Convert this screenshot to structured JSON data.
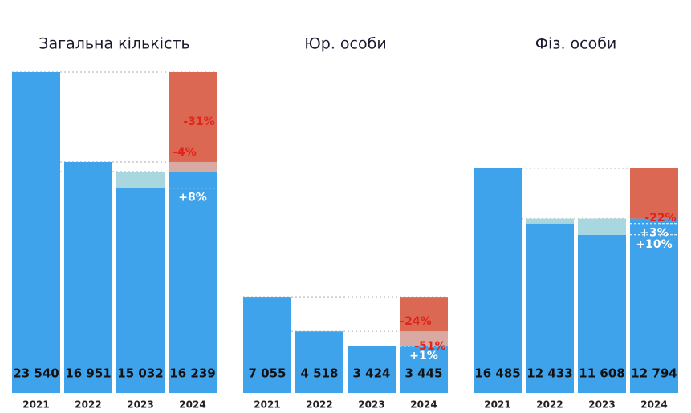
{
  "chart_data": [
    {
      "type": "bar",
      "title": "Загальна кількість",
      "categories": [
        "2021",
        "2022",
        "2023",
        "2024"
      ],
      "values": [
        23540,
        16951,
        15032,
        16239
      ],
      "value_labels": [
        "23 540",
        "16 951",
        "15 032",
        "16 239"
      ],
      "color": "#3ea3ea",
      "ylim": [
        0,
        23540
      ],
      "overlays": [
        [],
        [],
        [
          {
            "kind": "segment",
            "to": 16239,
            "color": "#a9d7df"
          }
        ],
        [
          {
            "kind": "line",
            "at": 15032,
            "label": "+8%",
            "label_color": "#ffffff"
          },
          {
            "kind": "segment",
            "to": 16951,
            "color": "#d8aaa2",
            "label": "-4%",
            "label_color": "#e2231a"
          },
          {
            "kind": "segment",
            "to": 23540,
            "color": "#da6852",
            "label": "-31%",
            "label_color": "#e2231a"
          }
        ]
      ]
    },
    {
      "type": "bar",
      "title": "Юр. особи",
      "categories": [
        "2021",
        "2022",
        "2023",
        "2024"
      ],
      "values": [
        7055,
        4518,
        3424,
        3445
      ],
      "value_labels": [
        "7 055",
        "4 518",
        "3 424",
        "3 445"
      ],
      "color": "#3ea3ea",
      "ylim": [
        0,
        23540
      ],
      "overlays": [
        [],
        [],
        [],
        [
          {
            "kind": "line",
            "at": 3424,
            "label": "+1%",
            "label_color": "#ffffff"
          },
          {
            "kind": "segment",
            "to": 4518,
            "color": "#d8aaa2",
            "label": "-24%",
            "label_color": "#e2231a"
          },
          {
            "kind": "segment",
            "to": 7055,
            "color": "#da6852",
            "label": "-51%",
            "label_color": "#e2231a"
          }
        ]
      ]
    },
    {
      "type": "bar",
      "title": "Фіз. особи",
      "categories": [
        "2021",
        "2022",
        "2023",
        "2024"
      ],
      "values": [
        16485,
        12433,
        11608,
        12794
      ],
      "value_labels": [
        "16 485",
        "12 433",
        "11 608",
        "12 794"
      ],
      "color": "#3ea3ea",
      "ylim": [
        0,
        23540
      ],
      "overlays": [
        [],
        [
          {
            "kind": "segment",
            "to": 12794,
            "color": "#a9d7df"
          }
        ],
        [
          {
            "kind": "segment",
            "to": 12794,
            "color": "#a9d7df"
          }
        ],
        [
          {
            "kind": "line",
            "at": 12433,
            "label": "+3%",
            "label_color": "#ffffff"
          },
          {
            "kind": "line",
            "at": 11608,
            "label": "+10%",
            "label_color": "#ffffff"
          },
          {
            "kind": "segment",
            "to": 16485,
            "color": "#da6852",
            "label": "-22%",
            "label_color": "#e2231a"
          }
        ]
      ]
    }
  ]
}
